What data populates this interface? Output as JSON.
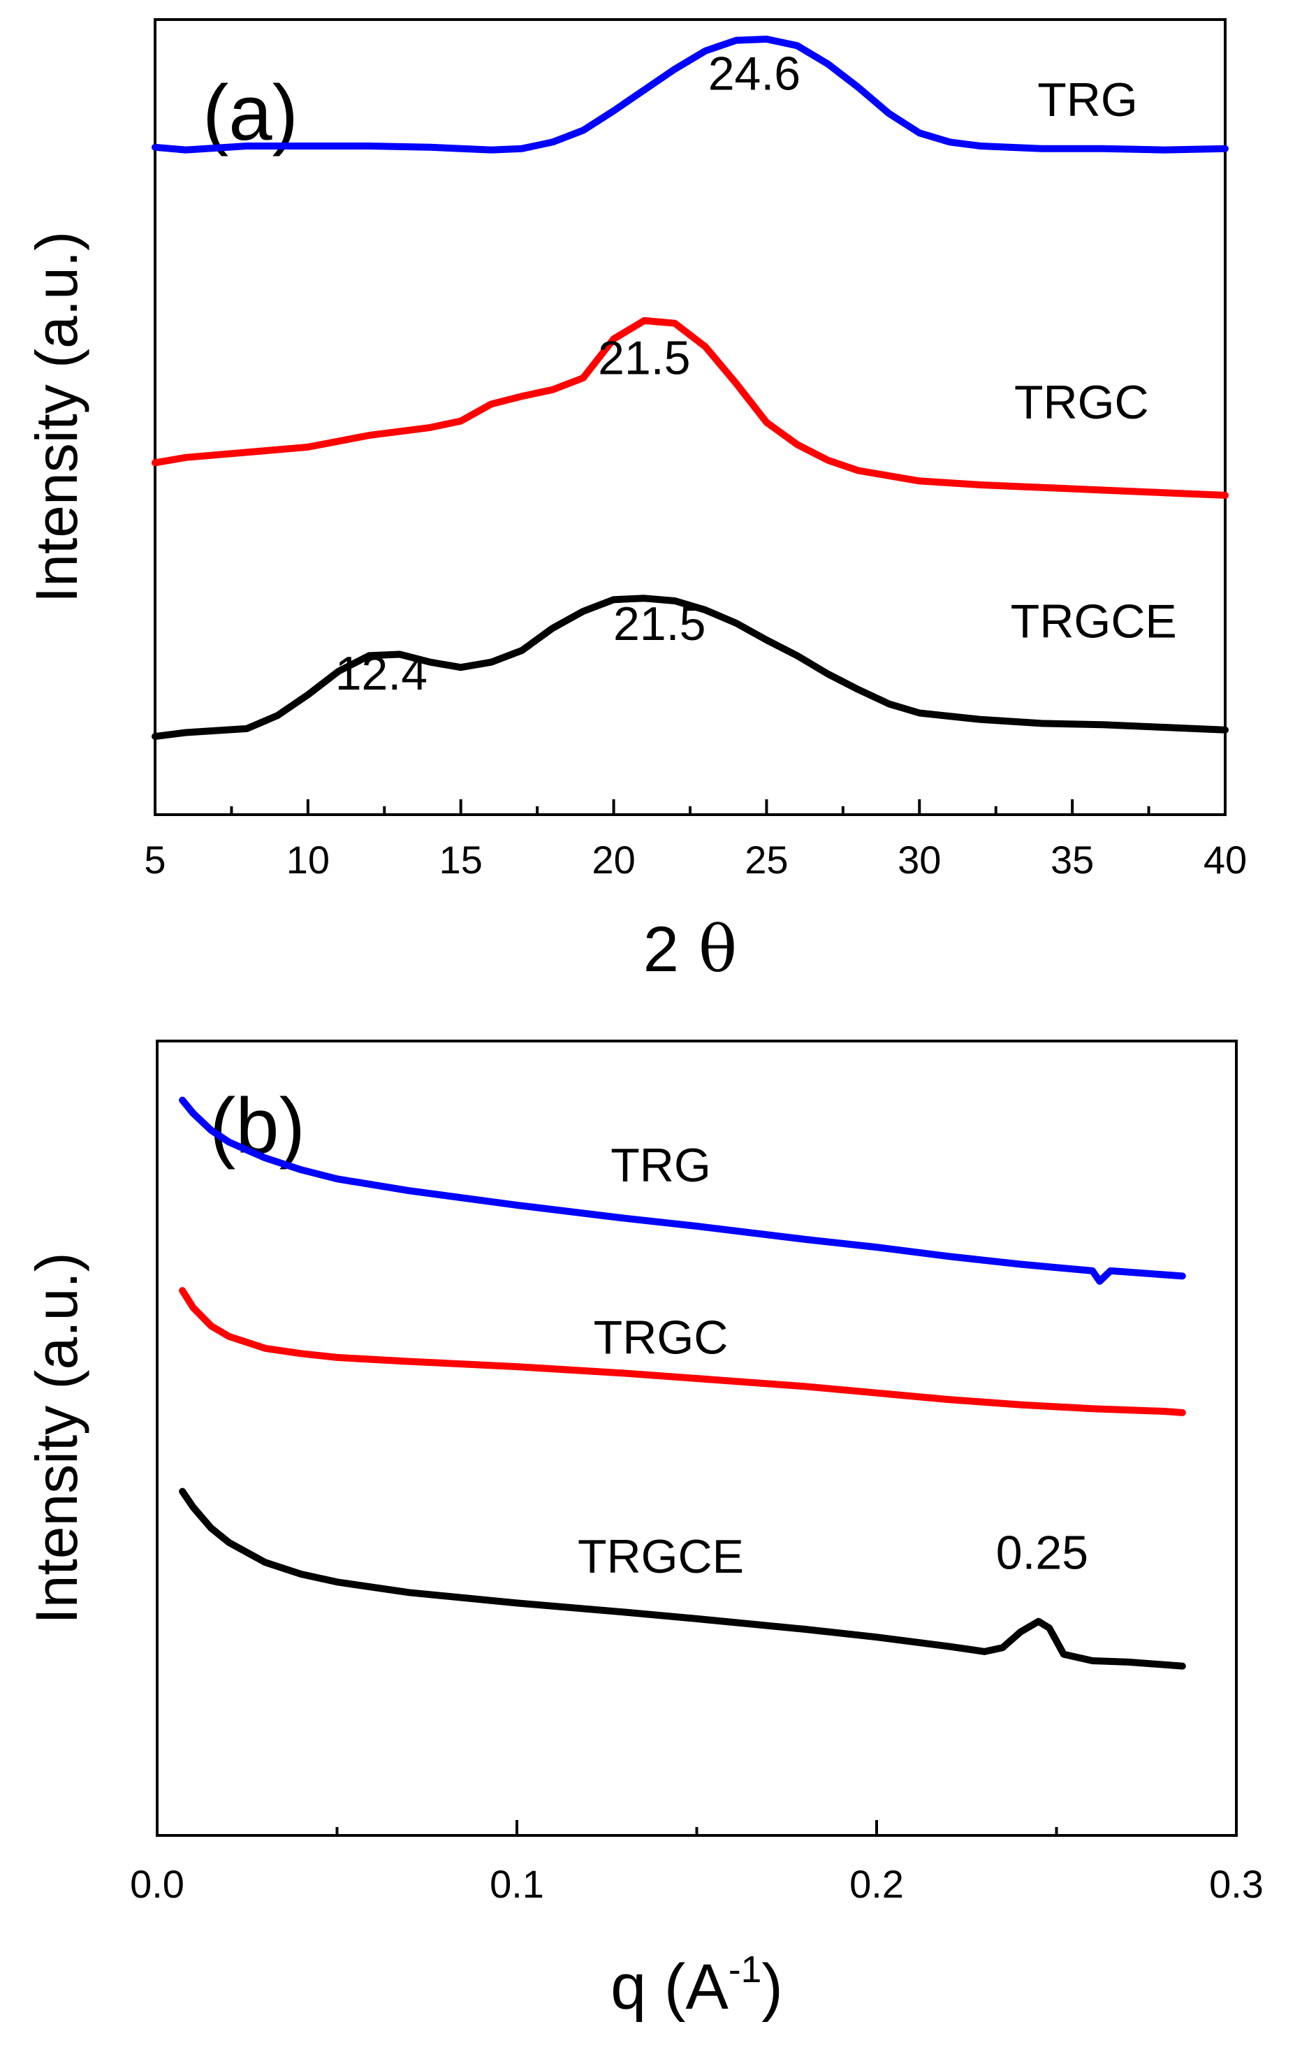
{
  "chart_data": [
    {
      "panel_label": "(a)",
      "type": "line",
      "xlabel_main": "2",
      "xlabel_symbol": "θ",
      "ylabel": "Intensity (a.u.)",
      "xlim": [
        5,
        40
      ],
      "xticks": [
        5,
        10,
        15,
        20,
        25,
        30,
        35,
        40
      ],
      "y_ticks_shown": false,
      "grid": false,
      "colors": {
        "TRG": "#0000ff",
        "TRGC": "#ff0000",
        "TRGCE": "#000000"
      },
      "series": [
        {
          "name": "TRG",
          "points": [
            [
              5,
              0.16
            ],
            [
              6,
              0.15
            ],
            [
              8,
              0.165
            ],
            [
              10,
              0.165
            ],
            [
              12,
              0.165
            ],
            [
              14,
              0.16
            ],
            [
              16,
              0.15
            ],
            [
              17,
              0.155
            ],
            [
              18,
              0.18
            ],
            [
              19,
              0.225
            ],
            [
              20,
              0.3
            ],
            [
              21,
              0.38
            ],
            [
              22,
              0.46
            ],
            [
              23,
              0.53
            ],
            [
              24,
              0.57
            ],
            [
              25,
              0.575
            ],
            [
              26,
              0.55
            ],
            [
              27,
              0.48
            ],
            [
              28,
              0.39
            ],
            [
              29,
              0.29
            ],
            [
              30,
              0.215
            ],
            [
              31,
              0.18
            ],
            [
              32,
              0.165
            ],
            [
              34,
              0.155
            ],
            [
              36,
              0.155
            ],
            [
              38,
              0.15
            ],
            [
              40,
              0.155
            ]
          ]
        },
        {
          "name": "TRGC",
          "points": [
            [
              5,
              -1.05
            ],
            [
              6,
              -1.03
            ],
            [
              8,
              -1.01
            ],
            [
              10,
              -0.99
            ],
            [
              12,
              -0.945
            ],
            [
              14,
              -0.915
            ],
            [
              15,
              -0.89
            ],
            [
              16,
              -0.825
            ],
            [
              17,
              -0.795
            ],
            [
              18,
              -0.77
            ],
            [
              19,
              -0.725
            ],
            [
              20,
              -0.575
            ],
            [
              21,
              -0.505
            ],
            [
              22,
              -0.515
            ],
            [
              23,
              -0.605
            ],
            [
              24,
              -0.745
            ],
            [
              25,
              -0.895
            ],
            [
              26,
              -0.98
            ],
            [
              27,
              -1.04
            ],
            [
              28,
              -1.08
            ],
            [
              30,
              -1.12
            ],
            [
              32,
              -1.135
            ],
            [
              34,
              -1.145
            ],
            [
              36,
              -1.155
            ],
            [
              38,
              -1.165
            ],
            [
              40,
              -1.175
            ]
          ]
        },
        {
          "name": "TRGCE",
          "points": [
            [
              5,
              -2.1
            ],
            [
              6,
              -2.085
            ],
            [
              8,
              -2.07
            ],
            [
              9,
              -2.02
            ],
            [
              10,
              -1.94
            ],
            [
              11,
              -1.85
            ],
            [
              12,
              -1.79
            ],
            [
              13,
              -1.785
            ],
            [
              14,
              -1.815
            ],
            [
              15,
              -1.835
            ],
            [
              16,
              -1.815
            ],
            [
              17,
              -1.77
            ],
            [
              18,
              -1.685
            ],
            [
              19,
              -1.62
            ],
            [
              20,
              -1.575
            ],
            [
              21,
              -1.57
            ],
            [
              22,
              -1.58
            ],
            [
              23,
              -1.615
            ],
            [
              24,
              -1.665
            ],
            [
              25,
              -1.73
            ],
            [
              26,
              -1.79
            ],
            [
              27,
              -1.86
            ],
            [
              28,
              -1.92
            ],
            [
              29,
              -1.975
            ],
            [
              30,
              -2.01
            ],
            [
              32,
              -2.035
            ],
            [
              34,
              -2.05
            ],
            [
              36,
              -2.055
            ],
            [
              38,
              -2.065
            ],
            [
              40,
              -2.075
            ]
          ]
        }
      ],
      "annotations": [
        {
          "text": "24.6",
          "x": 24.6,
          "y": 0.38
        },
        {
          "text": "21.5",
          "x": 21.0,
          "y": -0.71
        },
        {
          "text": "21.5",
          "x": 21.5,
          "y": -1.73
        },
        {
          "text": "12.4",
          "x": 12.4,
          "y": -1.92
        },
        {
          "text": "TRG",
          "x": 35.5,
          "y": 0.28
        },
        {
          "text": "TRGC",
          "x": 35.3,
          "y": -0.88
        },
        {
          "text": "TRGCE",
          "x": 35.7,
          "y": -1.72
        }
      ]
    },
    {
      "panel_label": "(b)",
      "type": "line",
      "xlabel_main": "q (A",
      "xlabel_sup": "-1",
      "xlabel_end": ")",
      "ylabel": "Intensity (a.u.)",
      "xlim": [
        0.0,
        0.3
      ],
      "xticks": [
        0.0,
        0.1,
        0.2,
        0.3
      ],
      "xtick_labels": [
        "0.0",
        "0.1",
        "0.2",
        "0.3"
      ],
      "y_ticks_shown": false,
      "grid": false,
      "colors": {
        "TRG": "#0000ff",
        "TRGC": "#ff0000",
        "TRGCE": "#000000"
      },
      "series": [
        {
          "name": "TRG",
          "points": [
            [
              0.007,
              3.4
            ],
            [
              0.01,
              3.3
            ],
            [
              0.015,
              3.17
            ],
            [
              0.02,
              3.08
            ],
            [
              0.03,
              2.96
            ],
            [
              0.04,
              2.87
            ],
            [
              0.05,
              2.8
            ],
            [
              0.07,
              2.71
            ],
            [
              0.1,
              2.6
            ],
            [
              0.13,
              2.5
            ],
            [
              0.15,
              2.44
            ],
            [
              0.18,
              2.34
            ],
            [
              0.2,
              2.28
            ],
            [
              0.22,
              2.21
            ],
            [
              0.24,
              2.15
            ],
            [
              0.26,
              2.1
            ],
            [
              0.262,
              2.02
            ],
            [
              0.265,
              2.1
            ],
            [
              0.28,
              2.07
            ],
            [
              0.285,
              2.06
            ]
          ]
        },
        {
          "name": "TRGC",
          "points": [
            [
              0.007,
              1.95
            ],
            [
              0.01,
              1.82
            ],
            [
              0.015,
              1.68
            ],
            [
              0.02,
              1.6
            ],
            [
              0.03,
              1.51
            ],
            [
              0.04,
              1.47
            ],
            [
              0.05,
              1.44
            ],
            [
              0.07,
              1.41
            ],
            [
              0.1,
              1.37
            ],
            [
              0.13,
              1.32
            ],
            [
              0.15,
              1.28
            ],
            [
              0.18,
              1.22
            ],
            [
              0.2,
              1.17
            ],
            [
              0.22,
              1.12
            ],
            [
              0.24,
              1.08
            ],
            [
              0.26,
              1.05
            ],
            [
              0.28,
              1.03
            ],
            [
              0.285,
              1.02
            ]
          ]
        },
        {
          "name": "TRGCE",
          "points": [
            [
              0.007,
              0.42
            ],
            [
              0.01,
              0.3
            ],
            [
              0.015,
              0.14
            ],
            [
              0.02,
              0.03
            ],
            [
              0.03,
              -0.12
            ],
            [
              0.04,
              -0.21
            ],
            [
              0.05,
              -0.27
            ],
            [
              0.07,
              -0.35
            ],
            [
              0.1,
              -0.43
            ],
            [
              0.13,
              -0.5
            ],
            [
              0.15,
              -0.55
            ],
            [
              0.18,
              -0.63
            ],
            [
              0.2,
              -0.69
            ],
            [
              0.22,
              -0.76
            ],
            [
              0.23,
              -0.8
            ],
            [
              0.235,
              -0.77
            ],
            [
              0.24,
              -0.65
            ],
            [
              0.245,
              -0.57
            ],
            [
              0.248,
              -0.62
            ],
            [
              0.252,
              -0.82
            ],
            [
              0.26,
              -0.87
            ],
            [
              0.27,
              -0.88
            ],
            [
              0.28,
              -0.9
            ],
            [
              0.285,
              -0.91
            ]
          ]
        }
      ],
      "annotations": [
        {
          "text": "TRG",
          "x": 0.14,
          "y": 2.78
        },
        {
          "text": "TRGC",
          "x": 0.14,
          "y": 1.47
        },
        {
          "text": "TRGCE",
          "x": 0.14,
          "y": -0.2
        },
        {
          "text": "0.25",
          "x": 0.246,
          "y": -0.17
        }
      ]
    }
  ]
}
